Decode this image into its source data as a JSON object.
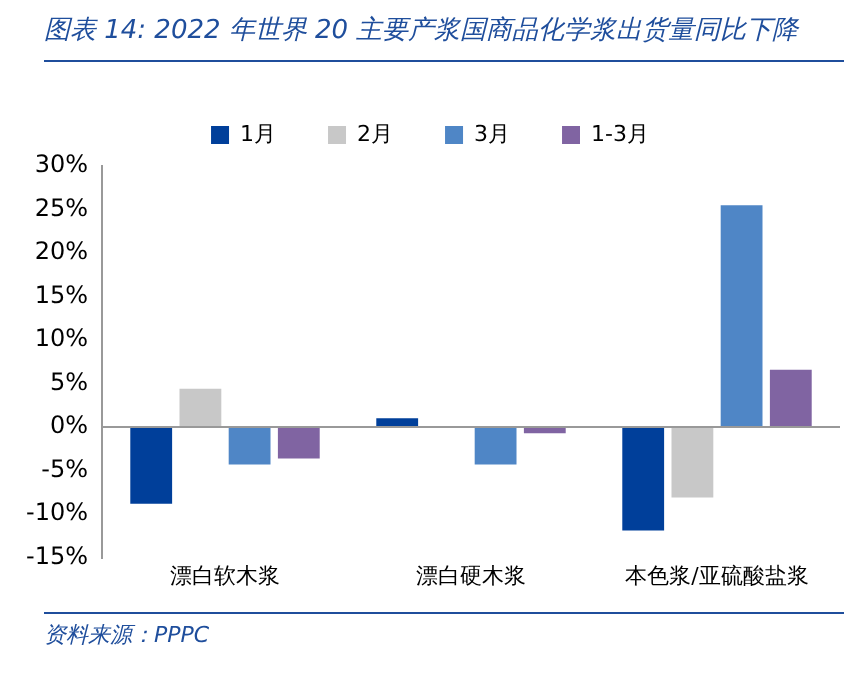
{
  "chart_data": {
    "type": "bar",
    "title": "图表 14:  2022 年世界 20 主要产浆国商品化学浆出货量同比下降",
    "categories": [
      "漂白软木浆",
      "漂白硬木浆",
      "本色浆/亚硫酸盐浆"
    ],
    "series": [
      {
        "name": "1月",
        "color": "#003f9a",
        "values": [
          -8.8,
          1.0,
          -11.9
        ]
      },
      {
        "name": "2月",
        "color": "#c8c8c8",
        "values": [
          4.4,
          null,
          -8.1
        ]
      },
      {
        "name": "3月",
        "color": "#4f86c6",
        "values": [
          -4.3,
          -4.3,
          25.5
        ]
      },
      {
        "name": "1-3月",
        "color": "#8064a2",
        "values": [
          -3.6,
          -0.7,
          6.6
        ]
      }
    ],
    "ylim": [
      -15,
      30
    ],
    "yticks": [
      {
        "value": -15,
        "label": "-15%"
      },
      {
        "value": -10,
        "label": "-10%"
      },
      {
        "value": -5,
        "label": "-5%"
      },
      {
        "value": 0,
        "label": "0%"
      },
      {
        "value": 5,
        "label": "5%"
      },
      {
        "value": 10,
        "label": "10%"
      },
      {
        "value": 15,
        "label": "15%"
      },
      {
        "value": 20,
        "label": "20%"
      },
      {
        "value": 25,
        "label": "25%"
      },
      {
        "value": 30,
        "label": "30%"
      }
    ],
    "grid": false,
    "legend": "top",
    "ref_lines": [
      {
        "axis": "y",
        "value": 0,
        "color": "#999999"
      }
    ],
    "annotations": [
      "资料来源：PPPC"
    ]
  }
}
